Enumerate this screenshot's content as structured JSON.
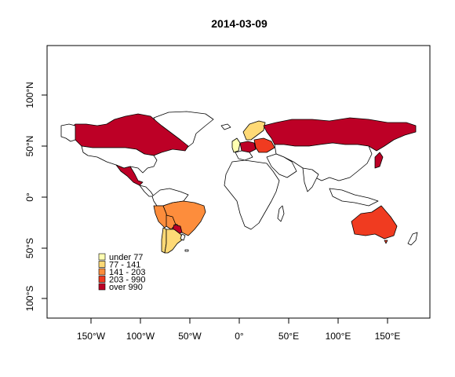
{
  "map": {
    "title": "2014-03-09",
    "x_ticks": [
      "150°W",
      "100°W",
      "50°W",
      "0°",
      "50°E",
      "100°E",
      "150°E"
    ],
    "y_ticks": [
      "100°S",
      "50°S",
      "0°",
      "50°N",
      "100°N"
    ]
  },
  "legend": {
    "position": "bottom-left",
    "items": [
      {
        "label": "under 77",
        "color": "#FFFFB2"
      },
      {
        "label": "77 - 141",
        "color": "#FED976"
      },
      {
        "label": "141 - 203",
        "color": "#FD8D3C"
      },
      {
        "label": "203 - 990",
        "color": "#F03B20"
      },
      {
        "label": "over 990",
        "color": "#BD0026"
      }
    ]
  },
  "colors": {
    "unshaded": "#FFFFFF",
    "under_77": "#FFFFB2",
    "c77_141": "#FED976",
    "c141_203": "#FD8D3C",
    "c203_990": "#F03B20",
    "over_990": "#BD0026"
  }
}
